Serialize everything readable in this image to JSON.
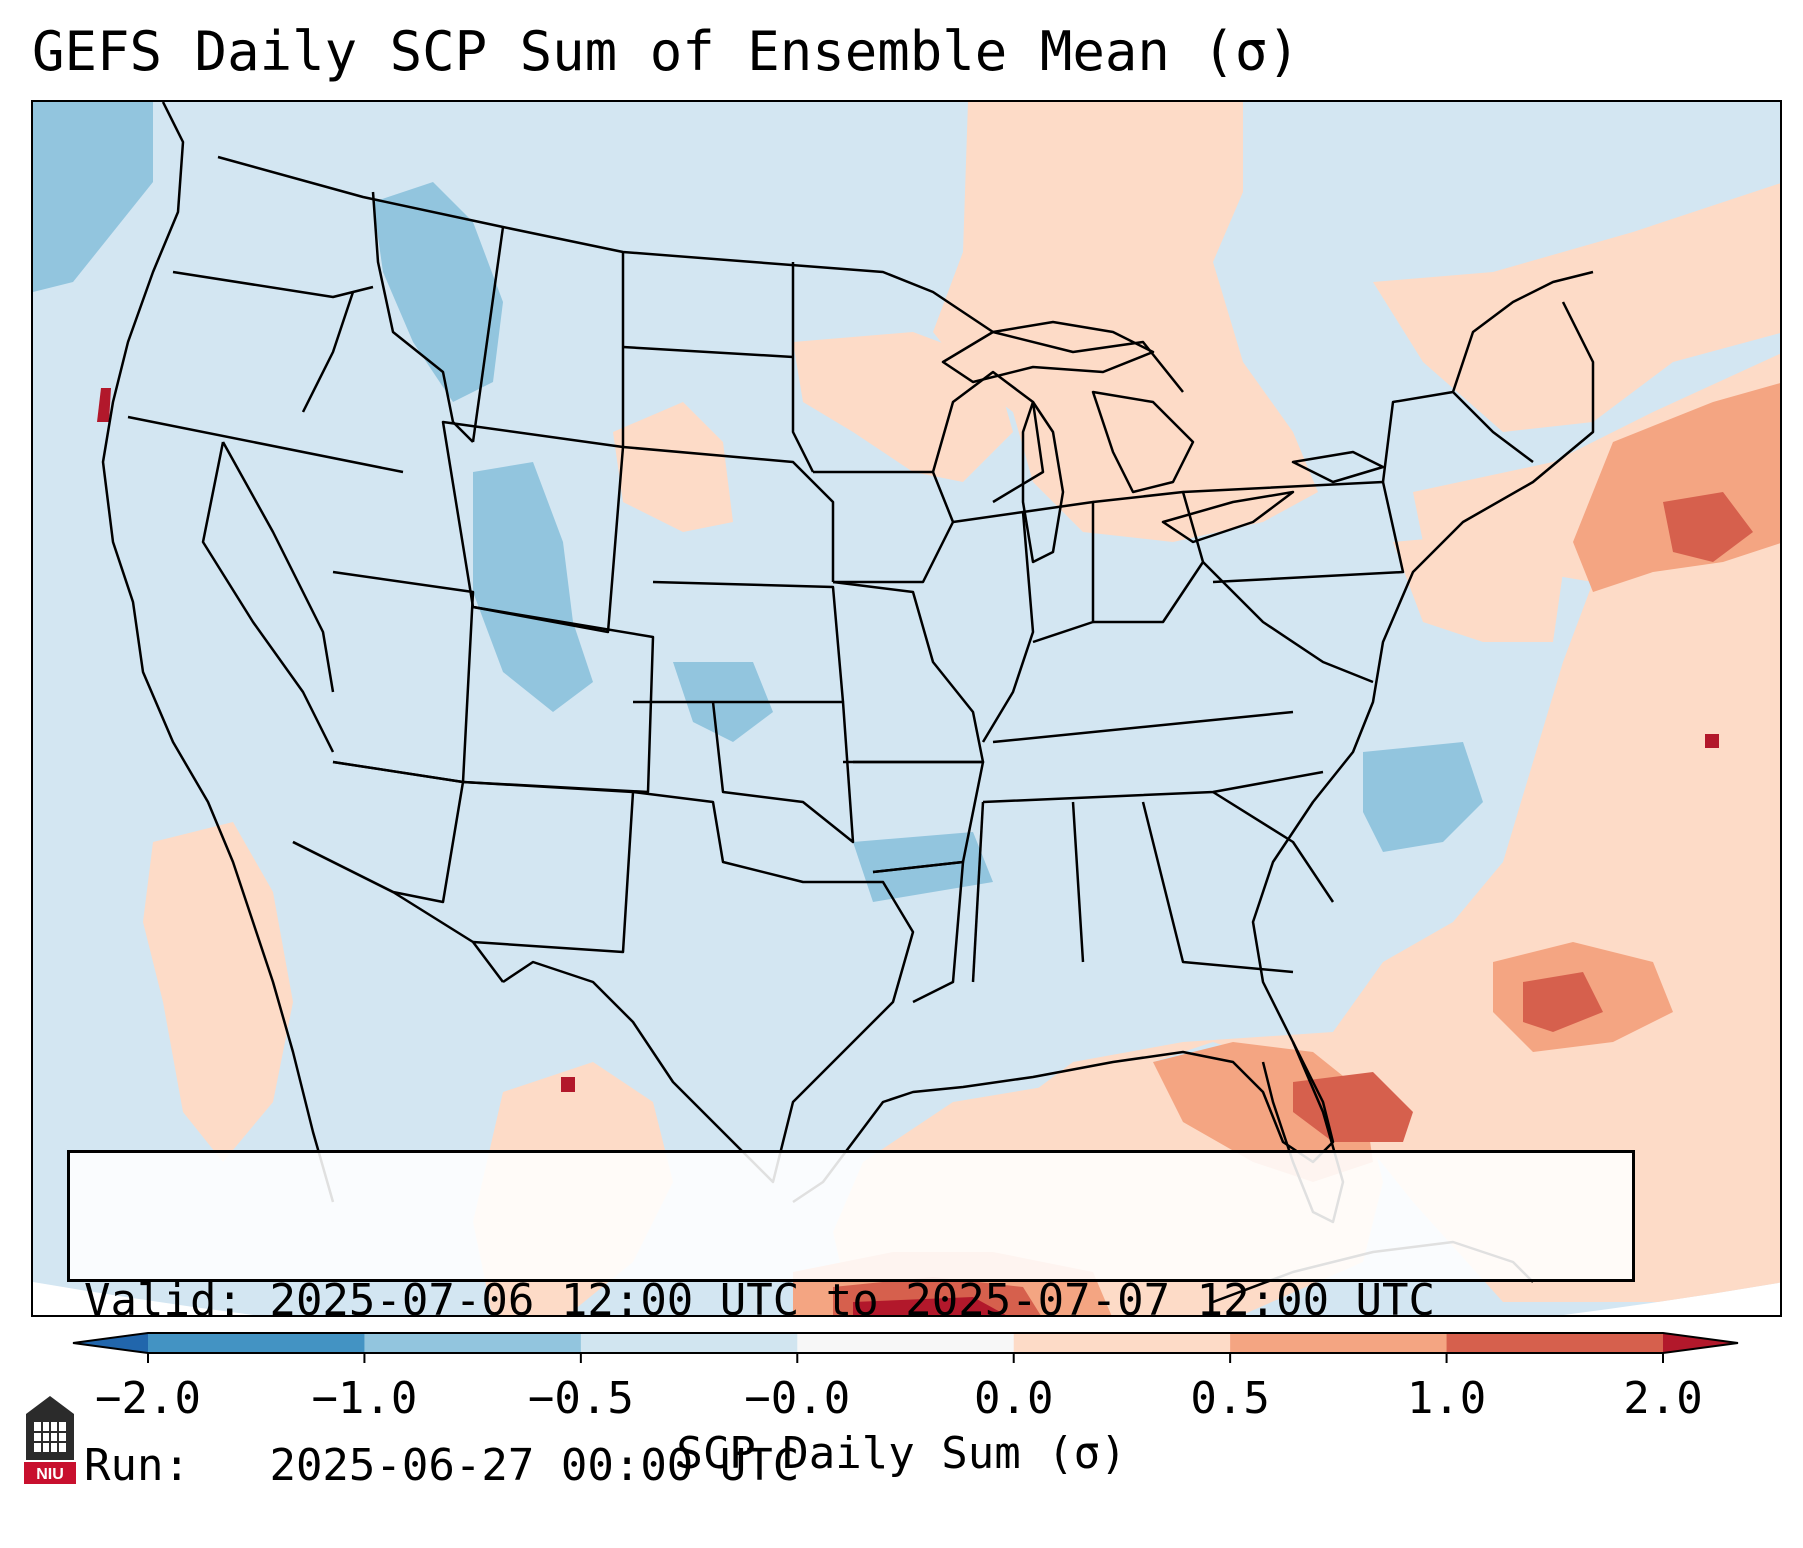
{
  "title": "GEFS Daily SCP Sum of Ensemble Mean (σ)",
  "info": {
    "valid_label": "Valid:",
    "valid_value": "2025-07-06 12:00 UTC to 2025-07-07 12:00 UTC",
    "run_label": "Run:",
    "run_value": "2025-06-27 00:00 UTC"
  },
  "colorbar": {
    "label": "SCP Daily Sum (σ)",
    "ticks": [
      "−2.0",
      "−1.0",
      "−0.5",
      "−0.0",
      "0.0",
      "0.5",
      "1.0",
      "2.0"
    ],
    "bins": [
      {
        "from": -2.0,
        "to": -1.0,
        "color": "#4393c3"
      },
      {
        "from": -1.0,
        "to": -0.5,
        "color": "#92c5de"
      },
      {
        "from": -0.5,
        "to": -0.0,
        "color": "#d1e5f0"
      },
      {
        "from": -0.0,
        "to": 0.0,
        "color": "#f7f7f7"
      },
      {
        "from": 0.0,
        "to": 0.5,
        "color": "#fddbc7"
      },
      {
        "from": 0.5,
        "to": 1.0,
        "color": "#f4a582"
      },
      {
        "from": 1.0,
        "to": 2.0,
        "color": "#d6604d"
      }
    ],
    "under_color": "#2166ac",
    "over_color": "#b2182b",
    "extend": "both"
  },
  "map": {
    "projection": "Lambert Conformal",
    "region": "CONUS",
    "base_color": "#d3e6f2",
    "colors": {
      "neg_strong": "#92c5de",
      "neg_mid": "#a9d0e6",
      "pos_light": "#fddbc7",
      "pos_mid": "#f4a582",
      "pos_strong": "#d6604d",
      "pos_extreme": "#b2182b"
    },
    "areas": [
      {
        "name": "northeast-positive",
        "value": 0.3
      },
      {
        "name": "southeast-atlantic-positive",
        "value": 0.5
      },
      {
        "name": "gulf-florida-positive",
        "value": 1.0
      },
      {
        "name": "great-lakes-positive",
        "value": 0.3
      },
      {
        "name": "northwest-negative",
        "value": -0.6
      },
      {
        "name": "caribbean-extreme",
        "value": 2.0
      }
    ]
  },
  "logo": {
    "text": "NIU",
    "color": "#c8102e"
  }
}
